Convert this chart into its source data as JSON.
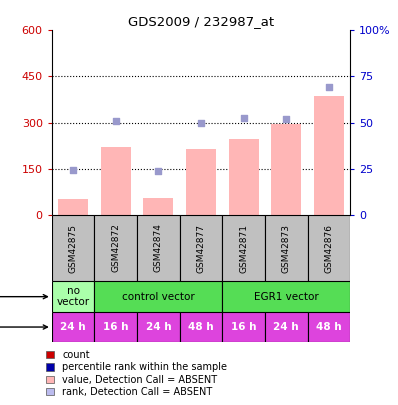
{
  "title": "GDS2009 / 232987_at",
  "samples": [
    "GSM42875",
    "GSM42872",
    "GSM42874",
    "GSM42877",
    "GSM42871",
    "GSM42873",
    "GSM42876"
  ],
  "bar_values": [
    50,
    220,
    55,
    215,
    245,
    295,
    385
  ],
  "dot_values_pct": [
    24.2,
    50.8,
    23.8,
    49.7,
    52.2,
    52.0,
    69.2
  ],
  "bar_color": "#FFB6B6",
  "dot_color": "#9999CC",
  "left_ylim": [
    0,
    600
  ],
  "left_yticks": [
    0,
    150,
    300,
    450,
    600
  ],
  "right_yticks": [
    0,
    25,
    50,
    75,
    100
  ],
  "right_yticklabels": [
    "0",
    "25",
    "50",
    "75",
    "100%"
  ],
  "time_labels": [
    "24 h",
    "16 h",
    "24 h",
    "48 h",
    "16 h",
    "24 h",
    "48 h"
  ],
  "time_color": "#DD44DD",
  "time_text_color": "white",
  "legend_items": [
    {
      "color": "#CC0000",
      "label": "count"
    },
    {
      "color": "#0000AA",
      "label": "percentile rank within the sample"
    },
    {
      "color": "#FFB6B6",
      "label": "value, Detection Call = ABSENT"
    },
    {
      "color": "#BBBBEE",
      "label": "rank, Detection Call = ABSENT"
    }
  ],
  "axis_color_left": "#CC0000",
  "axis_color_right": "#0000CC",
  "sample_bg_color": "#C0C0C0",
  "no_vector_color": "#AAFFAA",
  "control_vector_color": "#55DD55",
  "egr1_vector_color": "#55DD55",
  "infection_groups": [
    {
      "label": "no\nvector",
      "start": 0,
      "end": 1,
      "color": "#AAFFAA"
    },
    {
      "label": "control vector",
      "start": 1,
      "end": 4,
      "color": "#55DD55"
    },
    {
      "label": "EGR1 vector",
      "start": 4,
      "end": 7,
      "color": "#55DD55"
    }
  ]
}
